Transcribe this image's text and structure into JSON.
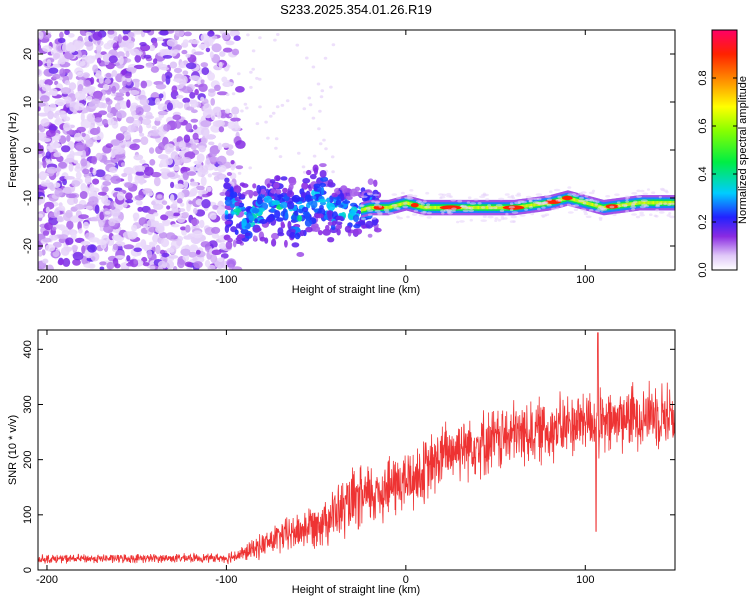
{
  "title": "S233.2025.354.01.26.R19",
  "chart_data": [
    {
      "type": "heatmap",
      "xlabel": "Height of straight line (km)",
      "ylabel": "Frequency (Hz)",
      "xlim": [
        -205,
        150
      ],
      "ylim": [
        -25,
        25
      ],
      "x_ticks": [
        -200,
        -100,
        0,
        100
      ],
      "y_ticks": [
        -20,
        -10,
        0,
        10,
        20
      ],
      "colorbar": {
        "label": "Normalized spectral amplitude",
        "range": [
          0,
          1
        ],
        "ticks": [
          0.0,
          0.2,
          0.4,
          0.6,
          0.8
        ]
      },
      "ridge": {
        "x": [
          -100,
          -90,
          -80,
          -70,
          -60,
          -50,
          -40,
          -30,
          -20,
          -10,
          0,
          10,
          20,
          40,
          60,
          80,
          90,
          100,
          110,
          130,
          150
        ],
        "freq": [
          -12,
          -14,
          -13,
          -12,
          -14,
          -10,
          -12,
          -13,
          -12,
          -12,
          -11,
          -12,
          -12,
          -12,
          -12,
          -11,
          -10,
          -11,
          -12,
          -11,
          -11
        ]
      }
    },
    {
      "type": "line",
      "xlabel": "Height of straight line (km)",
      "ylabel": "SNR (10 * v/v)",
      "xlim": [
        -205,
        150
      ],
      "ylim": [
        0,
        435
      ],
      "x_ticks": [
        -200,
        -100,
        0,
        100
      ],
      "y_ticks": [
        0,
        100,
        200,
        300,
        400
      ],
      "color": "#ee3333",
      "trend": {
        "x": [
          -205,
          -100,
          -90,
          -80,
          -70,
          -60,
          -50,
          -40,
          -30,
          -20,
          -10,
          0,
          10,
          20,
          30,
          40,
          50,
          60,
          70,
          80,
          90,
          100,
          110,
          120,
          130,
          140,
          150
        ],
        "snr": [
          20,
          22,
          30,
          45,
          60,
          70,
          85,
          100,
          120,
          135,
          150,
          160,
          175,
          205,
          225,
          230,
          235,
          245,
          250,
          255,
          260,
          275,
          260,
          275,
          280,
          285,
          280
        ]
      },
      "annotations": [
        {
          "x": 107,
          "snr": 430,
          "kind": "spike"
        },
        {
          "x": 106,
          "snr": 70,
          "kind": "dip"
        }
      ]
    }
  ]
}
